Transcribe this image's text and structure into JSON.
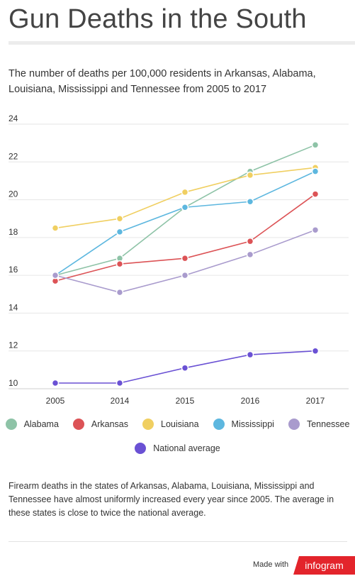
{
  "title": "Gun Deaths in the South",
  "subtitle": "The number of deaths per 100,000 residents in Arkansas, Alabama, Louisiana, Mississippi and Tennessee from 2005 to 2017",
  "footnote": "Firearm deaths in the states of Arkansas, Alabama, Louisiana, Mississippi and Tennessee have almost uniformly increased every year since 2005. The average in these states is close to twice the national average.",
  "branding": {
    "made_with": "Made with",
    "brand": "infogram"
  },
  "chart_data": {
    "type": "line",
    "title": "",
    "xlabel": "",
    "ylabel": "",
    "categories": [
      "2005",
      "2014",
      "2015",
      "2016",
      "2017"
    ],
    "ylim": [
      10,
      24
    ],
    "yticks": [
      "10",
      "12",
      "14",
      "16",
      "18",
      "20",
      "22",
      "24"
    ],
    "grid": true,
    "legend_position": "bottom",
    "series": [
      {
        "name": "Alabama",
        "color": "#8ec3a7",
        "values": [
          16.0,
          16.9,
          19.6,
          21.5,
          22.9
        ]
      },
      {
        "name": "Arkansas",
        "color": "#dc5356",
        "values": [
          15.7,
          16.6,
          16.9,
          17.8,
          20.3
        ]
      },
      {
        "name": "Louisiana",
        "color": "#f0cf61",
        "values": [
          18.5,
          19.0,
          20.4,
          21.3,
          21.7
        ]
      },
      {
        "name": "Mississippi",
        "color": "#5db7df",
        "values": [
          16.0,
          18.3,
          19.6,
          19.9,
          21.5
        ]
      },
      {
        "name": "Tennessee",
        "color": "#a99bcd",
        "values": [
          16.0,
          15.1,
          16.0,
          17.1,
          18.4
        ]
      },
      {
        "name": "National average",
        "color": "#6a51d4",
        "values": [
          10.3,
          10.3,
          11.1,
          11.8,
          12.0
        ]
      }
    ]
  }
}
